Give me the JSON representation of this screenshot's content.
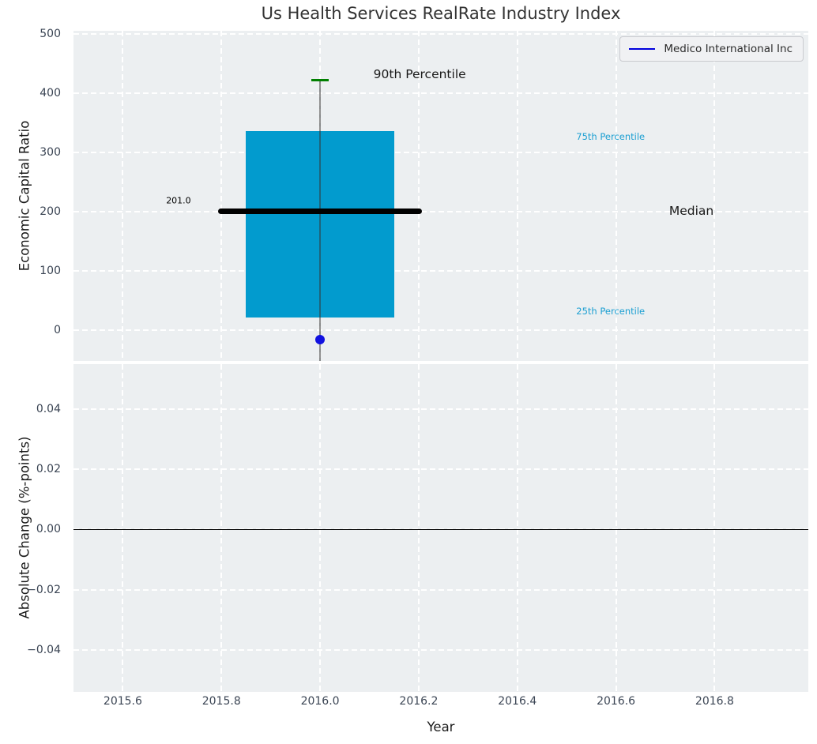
{
  "title": "Us Health Services RealRate Industry Index",
  "legend": {
    "label": "Medico International Inc",
    "line_color": "#0000dd"
  },
  "colors": {
    "plot_bg": "#eceff1",
    "grid": "#ffffff",
    "tick_label": "#3b4554",
    "box_fill": "#029bce",
    "median_line": "#000000",
    "percentile_cap": "#007f00",
    "company_dot": "#1111e0",
    "whisker": "rgba(55,55,55,0.55)",
    "percentile_text": "#1b9fd2"
  },
  "chart_data": [
    {
      "type": "box",
      "subplot": "top",
      "title": "Us Health Services RealRate Industry Index",
      "ylabel": "Economic Capital Ratio",
      "xlim": [
        2015.5,
        2016.99
      ],
      "ylim": [
        -52,
        505
      ],
      "yticks": [
        0,
        100,
        200,
        300,
        400,
        500
      ],
      "ytick_labels": [
        "0",
        "100",
        "200",
        "300",
        "400",
        "500"
      ],
      "grid": true,
      "legend_position": "upper right",
      "box": {
        "x": 2016.0,
        "q1": 21,
        "median": 201.0,
        "q3": 336,
        "p90": 422,
        "whisker_bottom": -52,
        "box_halfwidth": 0.15,
        "median_halfwidth": 0.207,
        "cap_halfwidth": 0.018
      },
      "series": [
        {
          "name": "Medico International Inc",
          "style": "point",
          "x": [
            2016.0
          ],
          "y": [
            -16
          ]
        }
      ],
      "annotations": [
        {
          "text": "201.0",
          "x": 2015.713,
          "y": 219,
          "size": 11,
          "color": "#000000"
        },
        {
          "text": "90th Percentile",
          "x": 2016.202,
          "y": 432,
          "size": 15.5,
          "color": "#1a1a1a"
        },
        {
          "text": "75th Percentile",
          "x": 2016.589,
          "y": 326,
          "size": 11.5,
          "color": "#1b9fd2"
        },
        {
          "text": "Median",
          "x": 2016.753,
          "y": 201,
          "size": 15.5,
          "color": "#1a1a1a"
        },
        {
          "text": "25th Percentile",
          "x": 2016.589,
          "y": 32,
          "size": 11.5,
          "color": "#1b9fd2"
        }
      ]
    },
    {
      "type": "line",
      "subplot": "bottom",
      "xlabel": "Year",
      "ylabel": "Absolute Change (%-points)",
      "xlim": [
        2015.5,
        2016.99
      ],
      "ylim": [
        -0.054,
        0.055
      ],
      "xticks": [
        2015.6,
        2015.8,
        2016.0,
        2016.2,
        2016.4,
        2016.6,
        2016.8
      ],
      "xtick_labels": [
        "2015.6",
        "2015.8",
        "2016.0",
        "2016.2",
        "2016.4",
        "2016.6",
        "2016.8"
      ],
      "yticks": [
        0.04,
        0.02,
        0.0,
        -0.02,
        -0.04
      ],
      "ytick_labels": [
        "0.04",
        "0.02",
        "0.00",
        "−0.02",
        "−0.04"
      ],
      "zero_line": 0.0,
      "grid": true
    }
  ]
}
